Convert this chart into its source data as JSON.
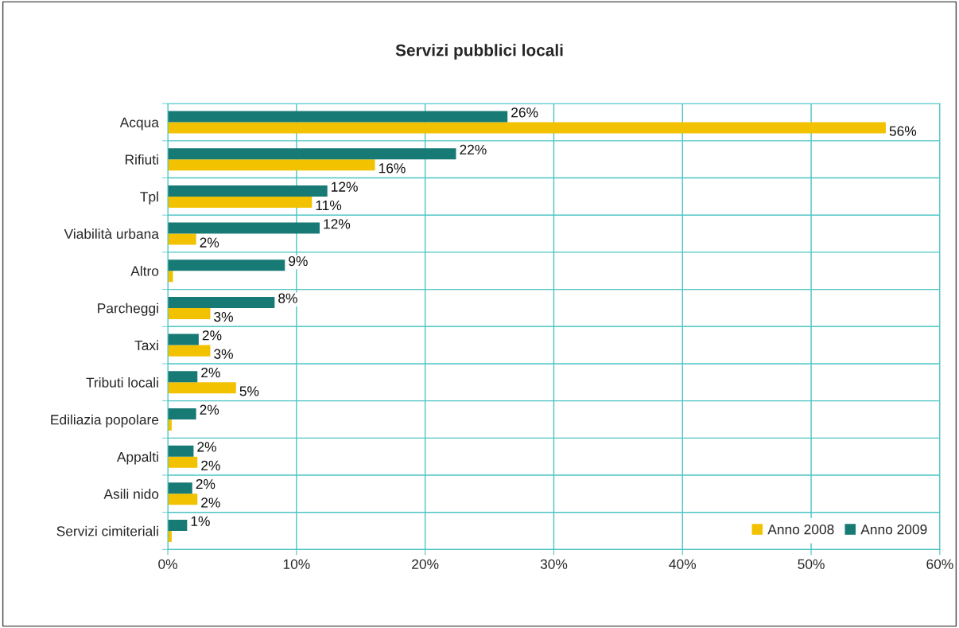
{
  "chart_data": {
    "type": "bar",
    "orientation": "horizontal",
    "title": "Servizi pubblici locali",
    "categories": [
      "Acqua",
      "Rifiuti",
      "Tpl",
      "Viabilità urbana",
      "Altro",
      "Parcheggi",
      "Taxi",
      "Tributi locali",
      "Ediliazia popolare",
      "Appalti",
      "Asili nido",
      "Servizi cimiteriali"
    ],
    "series": [
      {
        "name": "Anno 2008",
        "color": "#f2c200",
        "values": [
          55.8,
          16.1,
          11.2,
          2.2,
          0.4,
          3.3,
          3.3,
          5.3,
          0.3,
          2.3,
          2.3,
          0.3
        ],
        "value_labels": [
          "56%",
          "16%",
          "11%",
          "2%",
          null,
          "3%",
          "3%",
          "5%",
          null,
          "2%",
          "2%",
          null
        ]
      },
      {
        "name": "Anno 2009",
        "color": "#177a74",
        "values": [
          26.4,
          22.4,
          12.4,
          11.8,
          9.1,
          8.3,
          2.4,
          2.3,
          2.2,
          2.0,
          1.9,
          1.5
        ],
        "value_labels": [
          "26%",
          "22%",
          "12%",
          "12%",
          "9%",
          "8%",
          "2%",
          "2%",
          "2%",
          "2%",
          "2%",
          "1%"
        ]
      }
    ],
    "xlim": [
      0,
      60
    ],
    "xticks": [
      {
        "value": 0,
        "label": "0%"
      },
      {
        "value": 10,
        "label": "10%"
      },
      {
        "value": 20,
        "label": "20%"
      },
      {
        "value": 30,
        "label": "30%"
      },
      {
        "value": 40,
        "label": "40%"
      },
      {
        "value": 50,
        "label": "50%"
      },
      {
        "value": 60,
        "label": "60%"
      }
    ],
    "grid": true,
    "legend": "bottom right"
  }
}
